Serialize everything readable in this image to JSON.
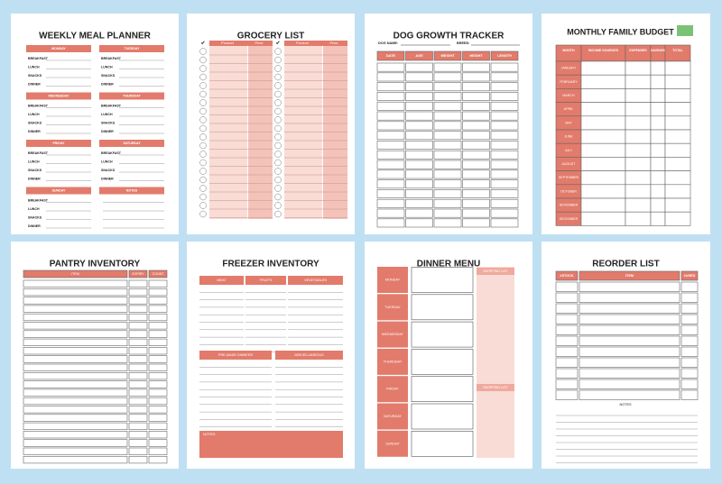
{
  "pages": [
    {
      "title": "WEEKLY MEAL PLANNER",
      "days": [
        "MONDAY",
        "TUESDAY",
        "WEDNESDAY",
        "THURSDAY",
        "FRIDAY",
        "SATURDAY",
        "SUNDAY",
        "NOTES"
      ],
      "meals": [
        "BREAKFAST",
        "LUNCH",
        "SNACKS",
        "DINNER"
      ]
    },
    {
      "title": "GROCERY LIST",
      "columns": [
        "Product",
        "Price"
      ]
    },
    {
      "title": "DOG GROWTH TRACKER",
      "fields": [
        "DOG NAME:",
        "BREED:"
      ],
      "columns": [
        "DATE",
        "AGE",
        "WEIGHT",
        "HEIGHT",
        "LENGTH"
      ]
    },
    {
      "title": "MONTHLY FAMILY BUDGET",
      "columns": [
        "MONTH",
        "INCOME SOURCES",
        "EXPENSES",
        "SAVINGS",
        "TOTAL"
      ],
      "months": [
        "JANUARY",
        "FEBRUARY",
        "MARCH",
        "APRIL",
        "MAY",
        "JUNE",
        "JULY",
        "AUGUST",
        "SEPTEMBER",
        "OCTOBER",
        "NOVEMBER",
        "DECEMBER"
      ]
    },
    {
      "title": "PANTRY INVENTORY",
      "columns": [
        "ITEM",
        "EXPIRY",
        "COUNT"
      ]
    },
    {
      "title": "FREEZER INVENTORY",
      "sections": [
        "MEAT",
        "FRUITS",
        "VEGETABLES",
        "PRE-MADE DINNERS",
        "MISCELLANEOUS"
      ],
      "notes": "NOTES:"
    },
    {
      "title": "DINNER MENU",
      "days": [
        "MONDAY",
        "TUESDAY",
        "WEDNESDAY",
        "THURSDAY",
        "FRIDAY",
        "SATURDAY",
        "SUNDAY"
      ],
      "lists": [
        "SHOPPING LIST",
        "SHOPPING LIST"
      ]
    },
    {
      "title": "REORDER LIST",
      "columns": [
        "#STOCK",
        "ITEM",
        "#USED"
      ],
      "notes": "NOTES"
    }
  ]
}
